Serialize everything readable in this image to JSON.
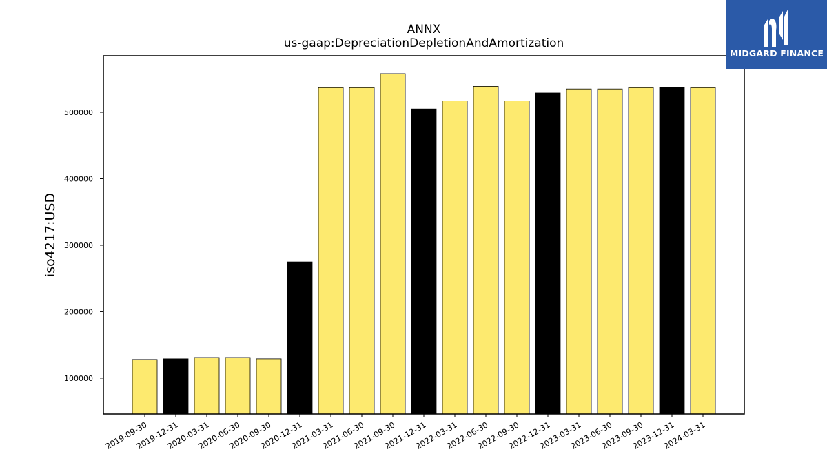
{
  "logo": {
    "text": "MIDGARD FINANCE",
    "background": "#2b5aa8"
  },
  "chart_data": {
    "type": "bar",
    "title": "ANNX",
    "subtitle": "us-gaap:DepreciationDepletionAndAmortization",
    "xlabel": "",
    "ylabel": "iso4217:USD",
    "ylim": [
      46000,
      585000
    ],
    "yticks": [
      100000,
      200000,
      300000,
      400000,
      500000
    ],
    "grid": false,
    "colors": {
      "quarter": "#fdea6f",
      "year_end": "#000000",
      "edge": "#000000"
    },
    "categories": [
      "2019-09-30",
      "2019-12-31",
      "2020-03-31",
      "2020-06-30",
      "2020-09-30",
      "2020-12-31",
      "2021-03-31",
      "2021-06-30",
      "2021-09-30",
      "2021-12-31",
      "2022-03-31",
      "2022-06-30",
      "2022-09-30",
      "2022-12-31",
      "2023-03-31",
      "2023-06-30",
      "2023-09-30",
      "2023-12-31",
      "2024-03-31"
    ],
    "values": [
      128000,
      129000,
      131000,
      131000,
      129000,
      275000,
      537000,
      537000,
      558000,
      505000,
      517000,
      539000,
      517000,
      529000,
      535000,
      535000,
      537000,
      537000,
      537000
    ]
  }
}
